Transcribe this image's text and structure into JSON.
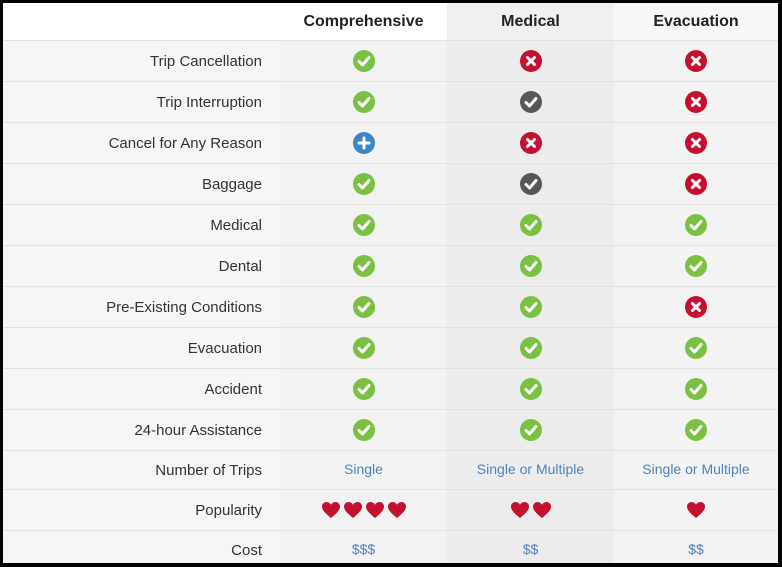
{
  "columns": [
    {
      "key": "comprehensive",
      "label": "Comprehensive"
    },
    {
      "key": "medical",
      "label": "Medical"
    },
    {
      "key": "evacuation",
      "label": "Evacuation"
    }
  ],
  "colors": {
    "check_included": "#7ac143",
    "check_partial": "#575757",
    "not_included": "#c4112f",
    "optional_addon": "#3d86c6",
    "link_text": "#4d82bf",
    "heart": "#c4112f"
  },
  "rows": [
    {
      "label": "Trip Cancellation",
      "cells": [
        "check-green-icon",
        "x-red-icon",
        "x-red-icon"
      ]
    },
    {
      "label": "Trip Interruption",
      "cells": [
        "check-green-icon",
        "check-gray-icon",
        "x-red-icon"
      ]
    },
    {
      "label": "Cancel for Any Reason",
      "cells": [
        "plus-blue-icon",
        "x-red-icon",
        "x-red-icon"
      ]
    },
    {
      "label": "Baggage",
      "cells": [
        "check-green-icon",
        "check-gray-icon",
        "x-red-icon"
      ]
    },
    {
      "label": "Medical",
      "cells": [
        "check-green-icon",
        "check-green-icon",
        "check-green-icon"
      ]
    },
    {
      "label": "Dental",
      "cells": [
        "check-green-icon",
        "check-green-icon",
        "check-green-icon"
      ]
    },
    {
      "label": "Pre-Existing Conditions",
      "cells": [
        "check-green-icon",
        "check-green-icon",
        "x-red-icon"
      ]
    },
    {
      "label": "Evacuation",
      "cells": [
        "check-green-icon",
        "check-green-icon",
        "check-green-icon"
      ]
    },
    {
      "label": "Accident",
      "cells": [
        "check-green-icon",
        "check-green-icon",
        "check-green-icon"
      ]
    },
    {
      "label": "24-hour Assistance",
      "cells": [
        "check-green-icon",
        "check-green-icon",
        "check-green-icon"
      ]
    }
  ],
  "trips": {
    "label": "Number of Trips",
    "values": [
      "Single",
      "Single or Multiple",
      "Single or Multiple"
    ]
  },
  "popularity": {
    "label": "Popularity",
    "icon": "heart-icon",
    "values": [
      4,
      2,
      1
    ]
  },
  "cost": {
    "label": "Cost",
    "values": [
      "$$$",
      "$$",
      "$$"
    ]
  }
}
